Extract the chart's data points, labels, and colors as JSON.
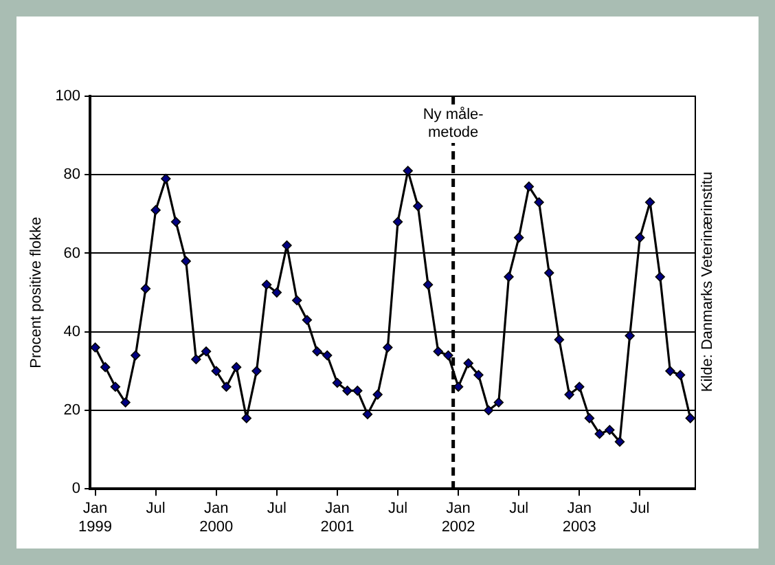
{
  "chart_data": {
    "type": "line",
    "ylabel": "Procent positive flokke",
    "x": [
      "1999-01",
      "1999-02",
      "1999-03",
      "1999-04",
      "1999-05",
      "1999-06",
      "1999-07",
      "1999-08",
      "1999-09",
      "1999-10",
      "1999-11",
      "1999-12",
      "2000-01",
      "2000-02",
      "2000-03",
      "2000-04",
      "2000-05",
      "2000-06",
      "2000-07",
      "2000-08",
      "2000-09",
      "2000-10",
      "2000-11",
      "2000-12",
      "2001-01",
      "2001-02",
      "2001-03",
      "2001-04",
      "2001-05",
      "2001-06",
      "2001-07",
      "2001-08",
      "2001-09",
      "2001-10",
      "2001-11",
      "2001-12",
      "2002-01",
      "2002-02",
      "2002-03",
      "2002-04",
      "2002-05",
      "2002-06",
      "2002-07",
      "2002-08",
      "2002-09",
      "2002-10",
      "2002-11",
      "2002-12",
      "2003-01",
      "2003-02",
      "2003-03",
      "2003-04",
      "2003-05",
      "2003-06",
      "2003-07",
      "2003-08",
      "2003-09",
      "2003-10",
      "2003-11",
      "2003-12"
    ],
    "series": [
      {
        "color": "#000000",
        "values": [
          36,
          31,
          26,
          22,
          34,
          51,
          71,
          79,
          68,
          58,
          33,
          35,
          30,
          26,
          31,
          18,
          30,
          52,
          50,
          62,
          48,
          43,
          35,
          34,
          27,
          25,
          25,
          19,
          24,
          36,
          68,
          81,
          72,
          52,
          35,
          34,
          26,
          32,
          29,
          20,
          22,
          54,
          64,
          77,
          73,
          55,
          38,
          24,
          26,
          18,
          14,
          15,
          12,
          39,
          64,
          73,
          54,
          30,
          29,
          18
        ]
      }
    ],
    "xlim": [
      "1998-12-16",
      "2003-12-16"
    ],
    "xticks": [
      {
        "value": "1999-01",
        "label": "Jan 1999"
      },
      {
        "value": "1999-07",
        "label": "Jul"
      },
      {
        "value": "2000-01",
        "label": "Jan 2000"
      },
      {
        "value": "2000-07",
        "label": "Jul"
      },
      {
        "value": "2001-01",
        "label": "Jan 2001"
      },
      {
        "value": "2001-07",
        "label": "Jul"
      },
      {
        "value": "2002-01",
        "label": "Jan 2002"
      },
      {
        "value": "2002-07",
        "label": "Jul"
      },
      {
        "value": "2003-01",
        "label": "Jan 2003"
      },
      {
        "value": "2003-07",
        "label": "Jul"
      }
    ],
    "ylim": [
      0,
      100
    ],
    "yticks": [
      0,
      20,
      40,
      60,
      80,
      100
    ],
    "grid": "y",
    "legend": false,
    "marker": "diamond",
    "line_style": "solid",
    "ref_lines": [
      {
        "axis": "x",
        "value": "2001-12-16",
        "label": "Ny måle-metode",
        "color": "#000000",
        "line_style": "dashed"
      }
    ],
    "annotations": [
      "Kilde: Danmarks Veterinærinstitu"
    ]
  }
}
